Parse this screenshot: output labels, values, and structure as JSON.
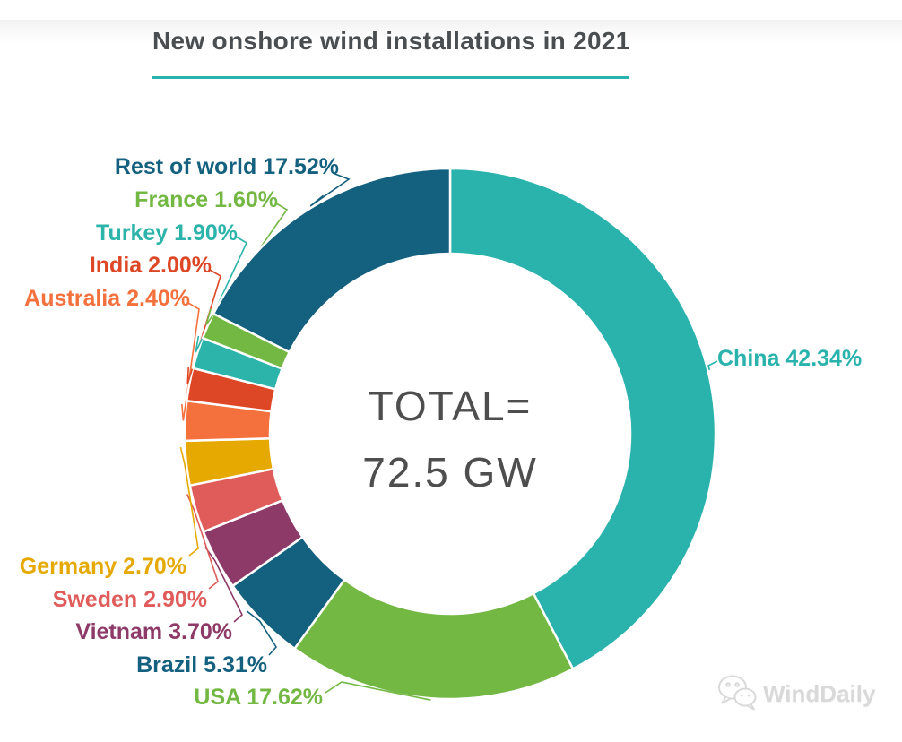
{
  "header": {
    "title": "New onshore wind installations in 2021",
    "underline_color": "#2AB3AE"
  },
  "center": {
    "line1": "TOTAL=",
    "line2": "72.5 GW"
  },
  "watermark": {
    "text": "WindDaily"
  },
  "chart_data": {
    "type": "pie",
    "variant": "donut",
    "title": "New onshore wind installations in 2021",
    "center_label": "TOTAL= 72.5 GW",
    "total_value_gw": 72.5,
    "start_angle_deg": 0,
    "direction": "clockwise",
    "slices": [
      {
        "name": "China",
        "value": 42.34,
        "display": "42.34%",
        "color": "#2AB2AD"
      },
      {
        "name": "USA",
        "value": 17.62,
        "display": "17.62%",
        "color": "#72B843"
      },
      {
        "name": "Brazil",
        "value": 5.31,
        "display": "5.31%",
        "color": "#14607F"
      },
      {
        "name": "Vietnam",
        "value": 3.7,
        "display": "3.70%",
        "color": "#8E3A68"
      },
      {
        "name": "Sweden",
        "value": 2.9,
        "display": "2.90%",
        "color": "#E05C5A"
      },
      {
        "name": "Germany",
        "value": 2.7,
        "display": "2.70%",
        "color": "#E6A902"
      },
      {
        "name": "Australia",
        "value": 2.4,
        "display": "2.40%",
        "color": "#F4713D"
      },
      {
        "name": "India",
        "value": 2.0,
        "display": "2.00%",
        "color": "#DD4726"
      },
      {
        "name": "Turkey",
        "value": 1.9,
        "display": "1.90%",
        "color": "#2CB4AA"
      },
      {
        "name": "France",
        "value": 1.6,
        "display": "1.60%",
        "color": "#72B843"
      },
      {
        "name": "Rest of world",
        "value": 17.52,
        "display": "17.52%",
        "color": "#14607F"
      }
    ]
  }
}
